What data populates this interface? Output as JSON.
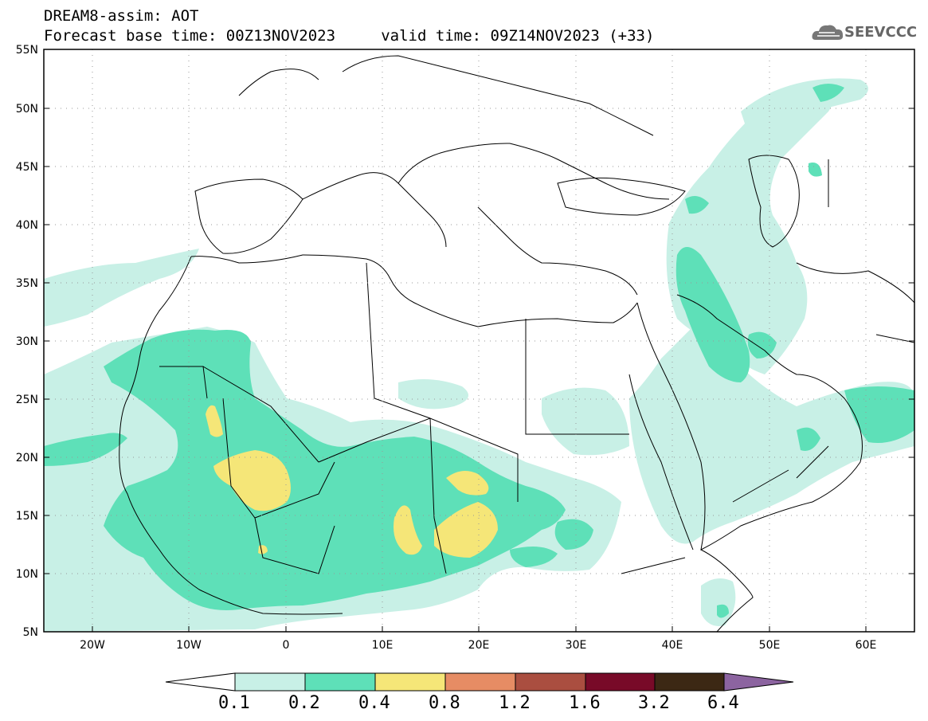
{
  "header": {
    "title_line1": "DREAM8-assim: AOT",
    "title_line2": "Forecast base time: 00Z13NOV2023     valid time: 09Z14NOV2023 (+33)",
    "logo_text": "SEEVCCC"
  },
  "axes": {
    "lat_labels": [
      "55N",
      "50N",
      "45N",
      "40N",
      "35N",
      "30N",
      "25N",
      "20N",
      "15N",
      "10N",
      "5N"
    ],
    "lon_labels": [
      "20W",
      "10W",
      "0",
      "10E",
      "20E",
      "30E",
      "40E",
      "50E",
      "60E"
    ]
  },
  "colorbar": {
    "labels": [
      "0.1",
      "0.2",
      "0.4",
      "0.8",
      "1.2",
      "1.6",
      "3.2",
      "6.4"
    ],
    "colors": [
      "#c8f0e6",
      "#5ee0b8",
      "#f5e678",
      "#e68c64",
      "#aa4e40",
      "#780a28",
      "#3c2814",
      "#8c64a0"
    ]
  },
  "map_colors": {
    "level_0_1": "#c8f0e6",
    "level_0_2": "#5ee0b8",
    "level_0_4": "#f5e678"
  }
}
